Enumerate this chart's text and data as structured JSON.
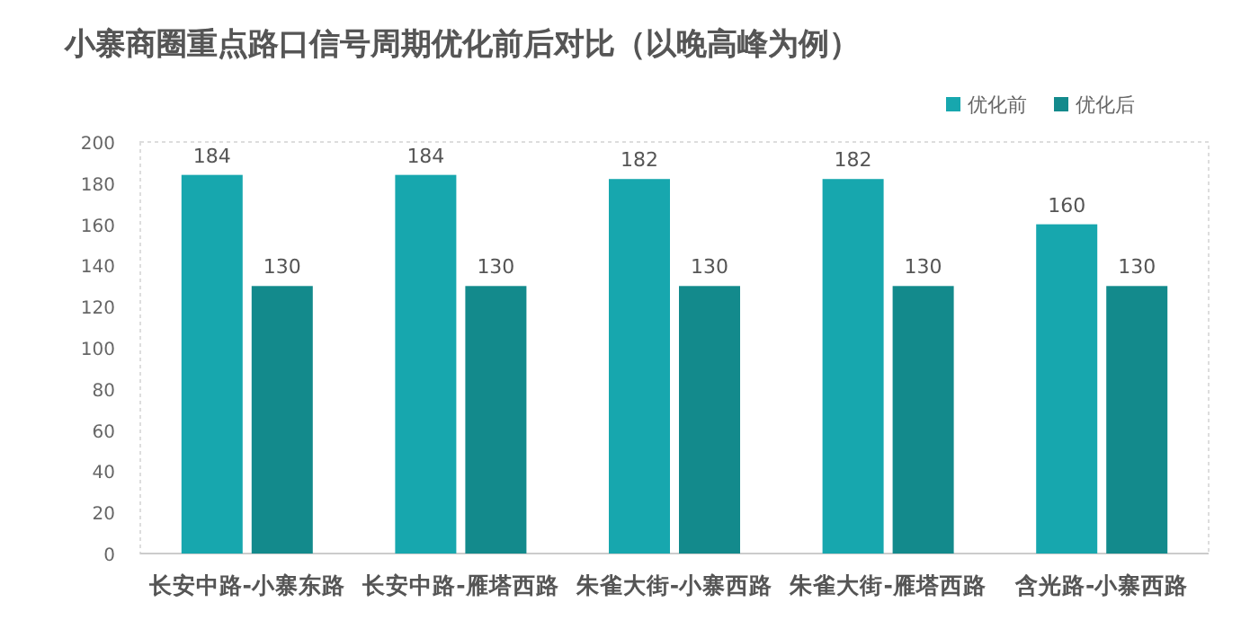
{
  "chart_data": {
    "type": "bar",
    "title": "小寨商圈重点路口信号周期优化前后对比（以晚高峰为例）",
    "categories": [
      "长安中路-小寨东路",
      "长安中路-雁塔西路",
      "朱雀大街-小寨西路",
      "朱雀大街-雁塔西路",
      "含光路-小寨西路"
    ],
    "series": [
      {
        "name": "优化前",
        "color": "#17a7ae",
        "values": [
          184,
          184,
          182,
          182,
          160
        ]
      },
      {
        "name": "优化后",
        "color": "#138a8c",
        "values": [
          130,
          130,
          130,
          130,
          130
        ]
      }
    ],
    "ylim": [
      0,
      200
    ],
    "yticks": [
      0,
      20,
      40,
      60,
      80,
      100,
      120,
      140,
      160,
      180,
      200
    ],
    "data_labels": true,
    "legend": "top right",
    "grid": false
  }
}
